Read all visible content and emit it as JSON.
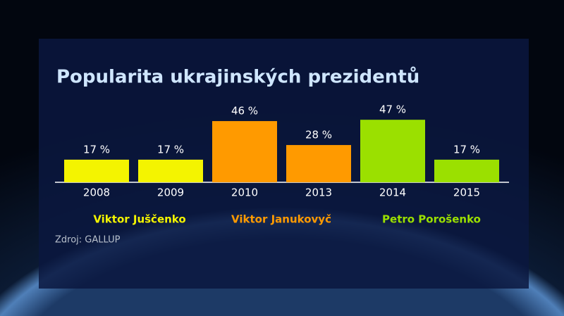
{
  "chart_data": {
    "type": "bar",
    "title": "Popularita ukrajinských prezidentů",
    "categories": [
      "2008",
      "2009",
      "2010",
      "2013",
      "2014",
      "2015"
    ],
    "values": [
      17,
      17,
      46,
      28,
      47,
      17
    ],
    "value_labels": [
      "17 %",
      "17 %",
      "46 %",
      "28 %",
      "47 %",
      "17 %"
    ],
    "colors": [
      "#f4f400",
      "#f4f400",
      "#ff9a00",
      "#ff9a00",
      "#9be000",
      "#9be000"
    ],
    "legend": [
      {
        "name": "Viktor Juščenko",
        "color": "#f4f400"
      },
      {
        "name": "Viktor Janukovyč",
        "color": "#ff9a00"
      },
      {
        "name": "Petro Porošenko",
        "color": "#9be000"
      }
    ],
    "source": "Zdroj: GALLUP"
  }
}
